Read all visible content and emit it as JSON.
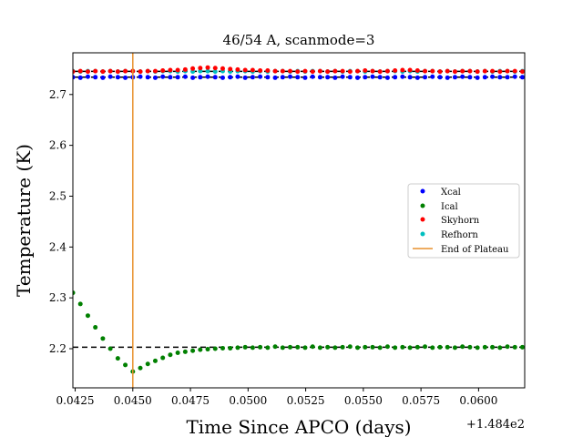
{
  "chart_data": {
    "type": "scatter",
    "title": "46/54 A, scanmode=3",
    "xlabel": "Time Since APCO (days)",
    "ylabel": "Temperature (K)",
    "x_offset_label": "+1.484e2",
    "x_offset": 148.4,
    "xlim": [
      0.0424,
      0.062
    ],
    "ylim": [
      2.123,
      2.782
    ],
    "x_ticks": [
      0.0425,
      0.045,
      0.0475,
      0.05,
      0.0525,
      0.055,
      0.0575,
      0.06
    ],
    "x_tick_labels": [
      "0.0425",
      "0.0450",
      "0.0475",
      "0.0500",
      "0.0525",
      "0.0550",
      "0.0575",
      "0.0600"
    ],
    "y_ticks": [
      2.2,
      2.3,
      2.4,
      2.5,
      2.6,
      2.7
    ],
    "y_tick_labels": [
      "2.2",
      "2.3",
      "2.4",
      "2.5",
      "2.6",
      "2.7"
    ],
    "grid": false,
    "legend_position": "center-right",
    "sample_spacing": 0.000325,
    "x_start": 0.0424,
    "series": [
      {
        "name": "Xcal",
        "color": "#0000ff",
        "values": [
          2.734,
          2.733,
          2.735,
          2.734,
          2.733,
          2.735,
          2.734,
          2.733,
          2.734,
          2.735,
          2.734,
          2.733,
          2.735,
          2.734,
          2.734,
          2.735,
          2.733,
          2.734,
          2.735,
          2.734,
          2.733,
          2.734,
          2.735,
          2.733,
          2.734,
          2.735,
          2.734,
          2.733,
          2.734,
          2.735,
          2.734,
          2.733,
          2.735,
          2.734,
          2.734,
          2.733,
          2.735,
          2.734,
          2.733,
          2.734,
          2.735,
          2.734,
          2.733,
          2.734,
          2.735,
          2.734,
          2.733,
          2.734,
          2.735,
          2.734,
          2.733,
          2.734,
          2.735,
          2.734,
          2.733,
          2.734,
          2.735,
          2.734,
          2.734,
          2.735,
          2.734
        ]
      },
      {
        "name": "Ical",
        "color": "#008000",
        "values": [
          2.31,
          2.288,
          2.265,
          2.242,
          2.22,
          2.2,
          2.181,
          2.168,
          2.155,
          2.162,
          2.17,
          2.176,
          2.182,
          2.188,
          2.192,
          2.194,
          2.196,
          2.198,
          2.199,
          2.2,
          2.201,
          2.201,
          2.202,
          2.203,
          2.202,
          2.203,
          2.202,
          2.204,
          2.202,
          2.203,
          2.203,
          2.202,
          2.204,
          2.202,
          2.203,
          2.202,
          2.203,
          2.204,
          2.202,
          2.203,
          2.203,
          2.202,
          2.204,
          2.202,
          2.203,
          2.202,
          2.203,
          2.204,
          2.202,
          2.203,
          2.203,
          2.202,
          2.204,
          2.203,
          2.202,
          2.203,
          2.203,
          2.202,
          2.204,
          2.203,
          2.203
        ]
      },
      {
        "name": "Skyhorn",
        "color": "#ff0000",
        "values": [
          2.745,
          2.746,
          2.745,
          2.746,
          2.745,
          2.746,
          2.745,
          2.746,
          2.746,
          2.745,
          2.746,
          2.746,
          2.747,
          2.748,
          2.748,
          2.749,
          2.751,
          2.752,
          2.753,
          2.752,
          2.751,
          2.75,
          2.749,
          2.748,
          2.748,
          2.747,
          2.747,
          2.746,
          2.746,
          2.746,
          2.745,
          2.746,
          2.745,
          2.746,
          2.745,
          2.746,
          2.746,
          2.745,
          2.746,
          2.747,
          2.746,
          2.745,
          2.746,
          2.747,
          2.748,
          2.748,
          2.747,
          2.746,
          2.746,
          2.745,
          2.746,
          2.745,
          2.746,
          2.746,
          2.745,
          2.746,
          2.746,
          2.745,
          2.746,
          2.746,
          2.745
        ]
      },
      {
        "name": "Refhorn",
        "color": "#00bfbf",
        "values": [
          2.746,
          2.745,
          2.746,
          2.746,
          2.745,
          2.746,
          2.745,
          2.746,
          2.746,
          2.745,
          2.746,
          2.745,
          2.746,
          2.746,
          2.745,
          2.746,
          2.745,
          2.746,
          2.746,
          2.745,
          2.746,
          2.745,
          2.746,
          2.746,
          2.745,
          2.746,
          2.745,
          2.746,
          2.746,
          2.745,
          2.746,
          2.745,
          2.746,
          2.746,
          2.745,
          2.746,
          2.745,
          2.746,
          2.746,
          2.745,
          2.746,
          2.745,
          2.746,
          2.746,
          2.745,
          2.746,
          2.745,
          2.746,
          2.746,
          2.745,
          2.746,
          2.745,
          2.746,
          2.746,
          2.745,
          2.746,
          2.745,
          2.746,
          2.746,
          2.745,
          2.746
        ]
      }
    ],
    "reference_lines": [
      {
        "name": "xcal-mean",
        "y": 2.734,
        "color": "#000000",
        "style": "dashed"
      },
      {
        "name": "refhorn-mean",
        "y": 2.7455,
        "color": "#000000",
        "style": "dashed"
      },
      {
        "name": "ical-mean",
        "y": 2.203,
        "color": "#000000",
        "style": "dashed"
      }
    ],
    "vertical_line": {
      "name": "End of Plateau",
      "x": 0.045,
      "color": "#e8912e"
    }
  }
}
